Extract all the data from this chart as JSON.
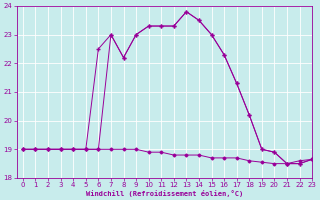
{
  "xlabel": "Windchill (Refroidissement éolien,°C)",
  "xlim": [
    -0.5,
    23
  ],
  "ylim": [
    18,
    24
  ],
  "yticks": [
    18,
    19,
    20,
    21,
    22,
    23,
    24
  ],
  "xticks": [
    0,
    1,
    2,
    3,
    4,
    5,
    6,
    7,
    8,
    9,
    10,
    11,
    12,
    13,
    14,
    15,
    16,
    17,
    18,
    19,
    20,
    21,
    22,
    23
  ],
  "bg_color": "#c8ecec",
  "line_color": "#990099",
  "grid_color": "#ffffff",
  "line1_x": [
    0,
    1,
    2,
    3,
    4,
    5,
    6,
    7,
    8,
    9,
    10,
    11,
    12,
    13,
    14,
    15,
    16,
    17,
    18,
    19,
    20,
    21,
    22,
    23
  ],
  "line1_y": [
    19.0,
    19.0,
    19.0,
    19.0,
    19.0,
    19.0,
    19.0,
    19.0,
    19.0,
    19.0,
    18.9,
    18.9,
    18.8,
    18.8,
    18.8,
    18.7,
    18.7,
    18.7,
    18.6,
    18.55,
    18.5,
    18.5,
    18.6,
    18.65
  ],
  "line2_x": [
    0,
    1,
    2,
    3,
    4,
    5,
    6,
    7,
    8,
    9,
    10,
    11,
    12,
    13,
    14,
    15,
    16,
    17,
    18,
    19,
    20,
    21,
    22,
    23
  ],
  "line2_y": [
    19.0,
    19.0,
    19.0,
    19.0,
    19.0,
    19.0,
    19.0,
    23.0,
    22.2,
    23.0,
    23.3,
    23.3,
    23.3,
    23.8,
    23.5,
    23.0,
    22.3,
    21.3,
    20.2,
    19.0,
    18.9,
    18.5,
    18.5,
    18.65
  ],
  "line3_x": [
    0,
    1,
    2,
    3,
    4,
    5,
    6,
    7,
    8,
    9,
    10,
    11,
    12,
    13,
    14,
    15,
    16,
    17,
    18,
    19,
    20,
    21,
    22,
    23
  ],
  "line3_y": [
    19.0,
    19.0,
    19.0,
    19.0,
    19.0,
    19.0,
    22.5,
    23.0,
    22.2,
    23.0,
    23.3,
    23.3,
    23.3,
    23.8,
    23.5,
    23.0,
    22.3,
    21.3,
    20.2,
    19.0,
    18.9,
    18.5,
    18.5,
    18.65
  ]
}
